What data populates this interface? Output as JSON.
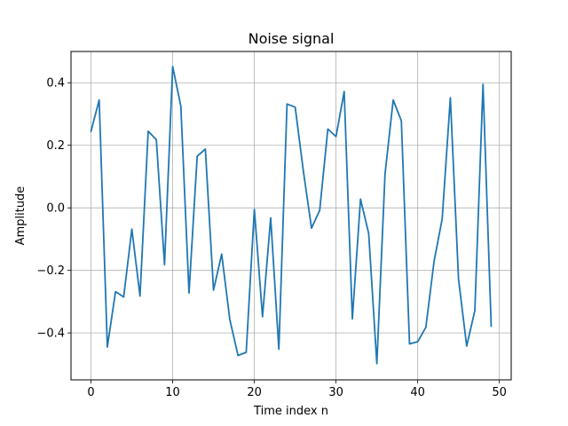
{
  "chart_data": {
    "type": "line",
    "title": "Noise signal",
    "xlabel": "Time index n",
    "ylabel": "Amplitude",
    "xlim": [
      -2.45,
      51.45
    ],
    "ylim": [
      -0.55,
      0.5
    ],
    "grid": true,
    "x_ticks": [
      0,
      10,
      20,
      30,
      40,
      50
    ],
    "x_tick_labels": [
      "0",
      "10",
      "20",
      "30",
      "40",
      "50"
    ],
    "y_ticks": [
      -0.4,
      -0.2,
      0.0,
      0.2,
      0.4
    ],
    "y_tick_labels": [
      "−0.4",
      "−0.2",
      "0.0",
      "0.2",
      "0.4"
    ],
    "series": [
      {
        "color": "#1f77b4",
        "x": [
          0,
          1,
          2,
          3,
          4,
          5,
          6,
          7,
          8,
          9,
          10,
          11,
          12,
          13,
          14,
          15,
          16,
          17,
          18,
          19,
          20,
          21,
          22,
          23,
          24,
          25,
          26,
          27,
          28,
          29,
          30,
          31,
          32,
          33,
          34,
          35,
          36,
          37,
          38,
          39,
          40,
          41,
          42,
          43,
          44,
          45,
          46,
          47,
          48,
          49
        ],
        "values": [
          0.245,
          0.345,
          -0.445,
          -0.268,
          -0.285,
          -0.068,
          -0.282,
          0.245,
          0.218,
          -0.182,
          0.452,
          0.325,
          -0.272,
          0.165,
          0.188,
          -0.263,
          -0.148,
          -0.358,
          -0.472,
          -0.462,
          -0.005,
          -0.348,
          -0.032,
          -0.452,
          0.332,
          0.322,
          0.118,
          -0.065,
          -0.008,
          0.252,
          0.228,
          0.372,
          -0.355,
          0.028,
          -0.082,
          -0.498,
          0.108,
          0.345,
          0.278,
          -0.435,
          -0.428,
          -0.382,
          -0.172,
          -0.035,
          0.352,
          -0.228,
          -0.442,
          -0.328,
          0.395,
          -0.378
        ]
      }
    ]
  }
}
